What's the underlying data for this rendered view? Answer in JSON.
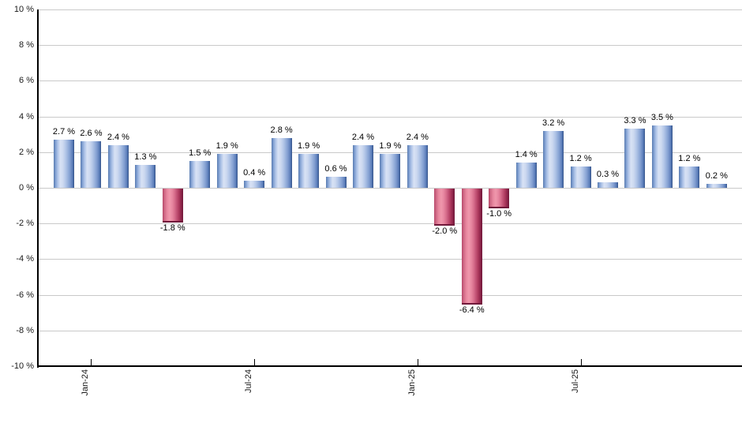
{
  "chart_data": {
    "type": "bar",
    "title": "",
    "values": [
      2.7,
      2.6,
      2.4,
      1.3,
      -1.8,
      1.5,
      1.9,
      0.4,
      2.8,
      1.9,
      0.6,
      2.4,
      1.9,
      2.4,
      -2.0,
      -6.4,
      -1.0,
      1.4,
      3.2,
      1.2,
      0.3,
      3.3,
      3.5,
      1.2,
      0.2
    ],
    "value_labels": [
      "2.7 %",
      "2.6 %",
      "2.4 %",
      "1.3 %",
      "-1.8 %",
      "1.5 %",
      "1.9 %",
      "0.4 %",
      "2.8 %",
      "1.9 %",
      "0.6 %",
      "2.4 %",
      "1.9 %",
      "2.4 %",
      "-2.0 %",
      "-6.4 %",
      "-1.0 %",
      "1.4 %",
      "3.2 %",
      "1.2 %",
      "0.3 %",
      "3.3 %",
      "3.5 %",
      "1.2 %",
      "0.2 %"
    ],
    "x_ticks": [
      {
        "label": "Jan-24",
        "bar_index": 1
      },
      {
        "label": "Jul-24",
        "bar_index": 7
      },
      {
        "label": "Jan-25",
        "bar_index": 13
      },
      {
        "label": "Jul-25",
        "bar_index": 19
      }
    ],
    "y_ticks": [
      {
        "value": 10,
        "label": "10 %"
      },
      {
        "value": 8,
        "label": "8 %"
      },
      {
        "value": 6,
        "label": "6 %"
      },
      {
        "value": 4,
        "label": "4 %"
      },
      {
        "value": 2,
        "label": "2 %"
      },
      {
        "value": 0,
        "label": "0 %"
      },
      {
        "value": -2,
        "label": "-2 %"
      },
      {
        "value": -4,
        "label": "-4 %"
      },
      {
        "value": -6,
        "label": "-6 %"
      },
      {
        "value": -8,
        "label": "-8 %"
      },
      {
        "value": -10,
        "label": "-10 %"
      }
    ],
    "ylim": [
      -10,
      10
    ],
    "grid": true,
    "legend": "none",
    "colors": {
      "positive_bar": "#6e93c8",
      "positive_bar_light": "#d8e2f5",
      "positive_bar_dark": "#32507f",
      "negative_bar": "#c14a6d",
      "negative_bar_light": "#ef97ac",
      "negative_bar_dark": "#70183a",
      "gridline": "#c9c9c9",
      "axis": "#000000",
      "label_text": "#1a1a1a",
      "background": "#ffffff"
    }
  }
}
